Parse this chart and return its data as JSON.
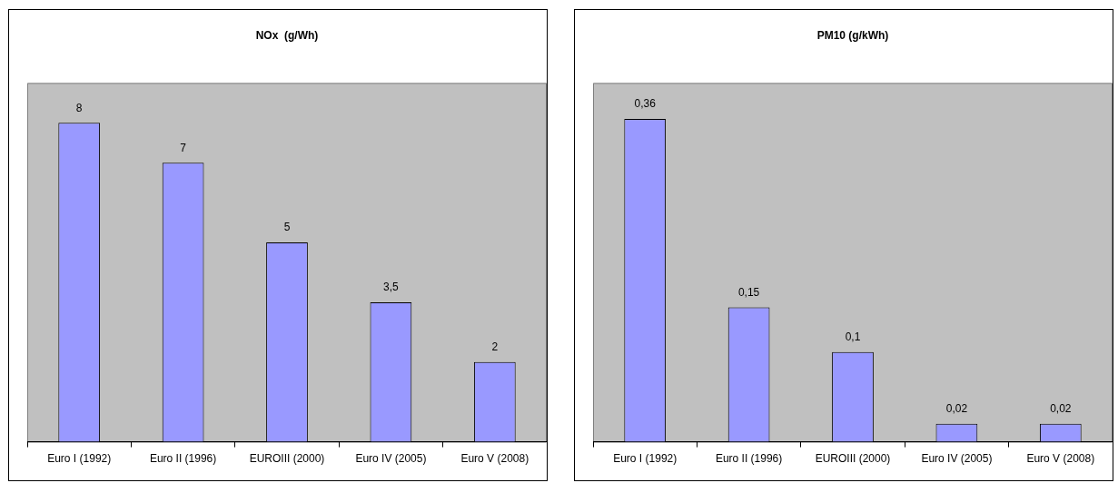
{
  "chart_data": [
    {
      "type": "bar",
      "title": "NOx  (g/Wh)",
      "categories": [
        "Euro I (1992)",
        "Euro II (1996)",
        "EUROIII (2000)",
        "Euro IV (2005)",
        "Euro V (2008)"
      ],
      "values": [
        8,
        7,
        5,
        3.5,
        2
      ],
      "value_labels": [
        "8",
        "7",
        "5",
        "3,5",
        "2"
      ],
      "color": "#9999ff",
      "grid": false,
      "legend": false
    },
    {
      "type": "bar",
      "title": "PM10 (g/kWh)",
      "categories": [
        "Euro I (1992)",
        "Euro II (1996)",
        "EUROIII (2000)",
        "Euro IV (2005)",
        "Euro V (2008)"
      ],
      "values": [
        0.36,
        0.15,
        0.1,
        0.02,
        0.02
      ],
      "value_labels": [
        "0,36",
        "0,15",
        "0,1",
        "0,02",
        "0,02"
      ],
      "color": "#9999ff",
      "grid": false,
      "legend": false
    }
  ]
}
